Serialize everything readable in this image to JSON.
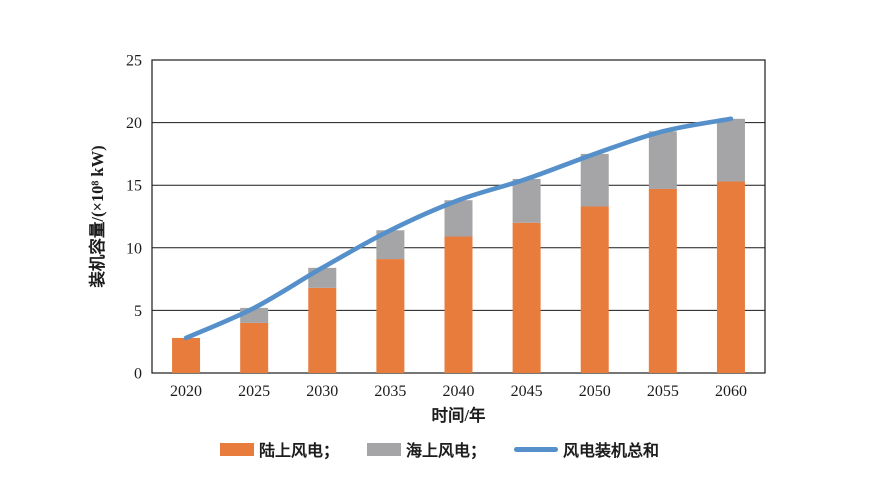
{
  "chart_data": {
    "type": "bar",
    "stacked": true,
    "title": "",
    "categories": [
      "2020",
      "2025",
      "2030",
      "2035",
      "2040",
      "2045",
      "2050",
      "2055",
      "2060"
    ],
    "series": [
      {
        "name": "陆上风电",
        "type": "bar",
        "color": "#E87C3C",
        "values": [
          2.8,
          4.0,
          6.8,
          9.1,
          10.9,
          12.0,
          13.3,
          14.7,
          15.3
        ]
      },
      {
        "name": "海上风电",
        "type": "bar",
        "color": "#A5A4A6",
        "values": [
          0,
          1.2,
          1.6,
          2.3,
          2.9,
          3.5,
          4.2,
          4.6,
          5.0
        ]
      },
      {
        "name": "风电装机总和",
        "type": "line",
        "color": "#5590CA",
        "values": [
          2.8,
          5.2,
          8.4,
          11.4,
          13.8,
          15.5,
          17.5,
          19.3,
          20.3
        ]
      }
    ],
    "xlabel": "时间/年",
    "ylabel": "装机容量/(×10⁸ kW)",
    "ylim": [
      0,
      25
    ],
    "yticks": [
      0,
      5,
      10,
      15,
      20,
      25
    ],
    "grid": true,
    "axis_color": "#1a1a1a",
    "text_color": "#1c1c1c",
    "legend_position": "bottom",
    "legend": [
      {
        "label": "陆上风电；",
        "swatch": "bar",
        "color": "#E87C3C"
      },
      {
        "label": "海上风电；",
        "swatch": "bar",
        "color": "#A5A4A6"
      },
      {
        "label": "风电装机总和",
        "swatch": "line",
        "color": "#5590CA"
      }
    ]
  }
}
